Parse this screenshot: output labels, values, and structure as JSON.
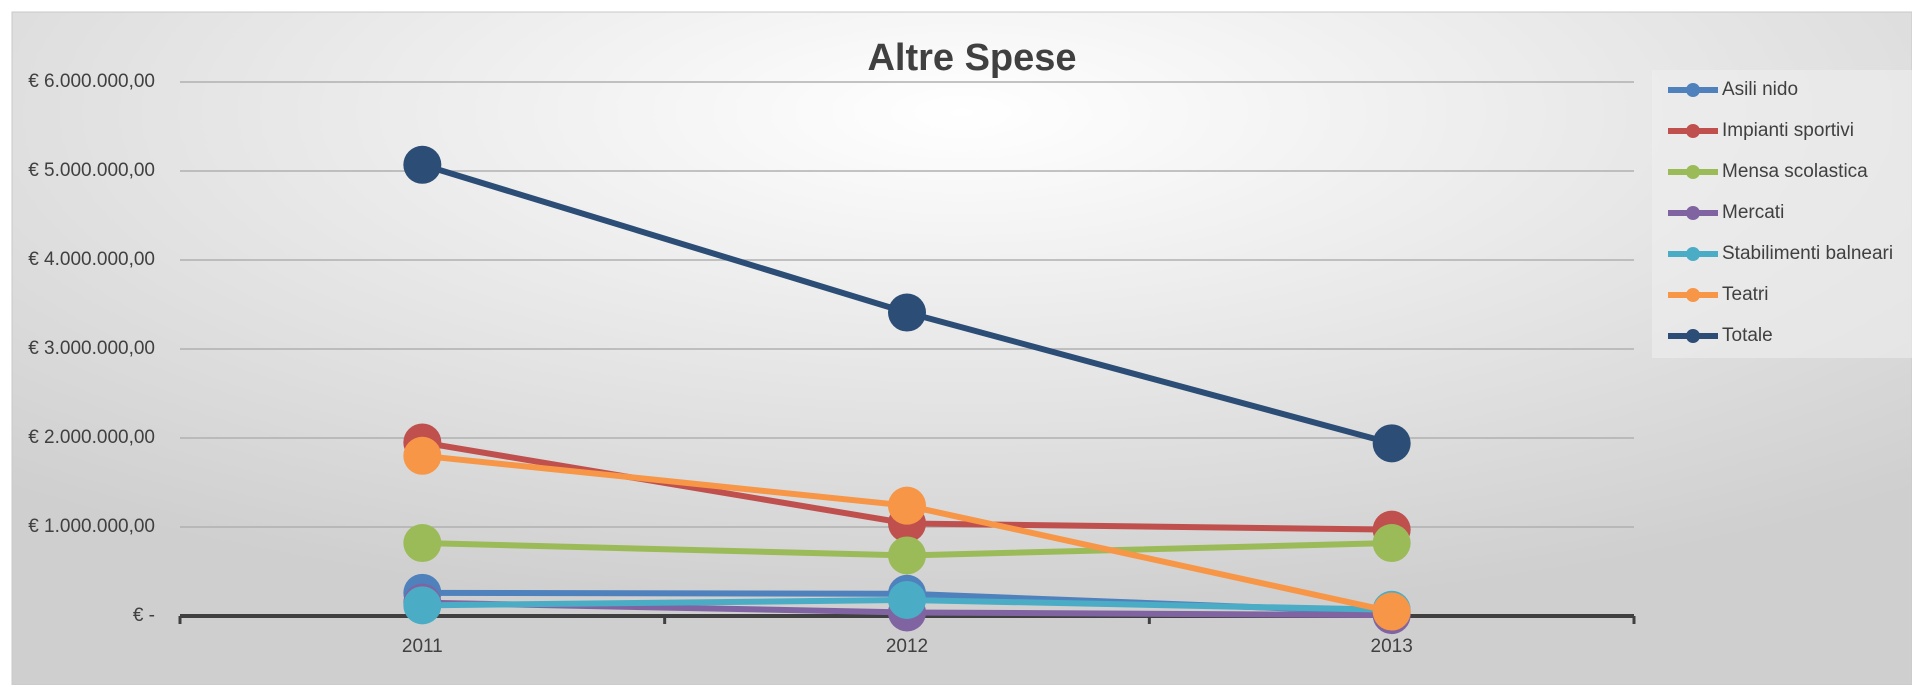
{
  "chart_data": {
    "type": "line",
    "title": "Altre Spese",
    "categories": [
      "2011",
      "2012",
      "2013"
    ],
    "series": [
      {
        "name": "Asili nido",
        "color": "#4f81bd",
        "values": [
          260000,
          250000,
          40000
        ]
      },
      {
        "name": "Impianti sportivi",
        "color": "#c0504d",
        "values": [
          1950000,
          1040000,
          970000
        ]
      },
      {
        "name": "Mensa scolastica",
        "color": "#9bbb59",
        "values": [
          820000,
          680000,
          820000
        ]
      },
      {
        "name": "Mercati",
        "color": "#8064a2",
        "values": [
          150000,
          40000,
          10000
        ]
      },
      {
        "name": "Stabilimenti balneari",
        "color": "#4bacc6",
        "values": [
          120000,
          180000,
          70000
        ]
      },
      {
        "name": "Teatri",
        "color": "#f79646",
        "values": [
          1800000,
          1240000,
          50000
        ]
      },
      {
        "name": "Totale",
        "color": "#2c4d75",
        "values": [
          5070000,
          3410000,
          1940000
        ]
      }
    ],
    "ylim": [
      0,
      6000000
    ],
    "yticks": [
      {
        "value": 0,
        "label": "€ -"
      },
      {
        "value": 1000000,
        "label": "€ 1.000.000,00"
      },
      {
        "value": 2000000,
        "label": "€ 2.000.000,00"
      },
      {
        "value": 3000000,
        "label": "€ 3.000.000,00"
      },
      {
        "value": 4000000,
        "label": "€ 4.000.000,00"
      },
      {
        "value": 5000000,
        "label": "€ 5.000.000,00"
      },
      {
        "value": 6000000,
        "label": "€ 6.000.000,00"
      }
    ],
    "grid": true,
    "legend": "right"
  }
}
